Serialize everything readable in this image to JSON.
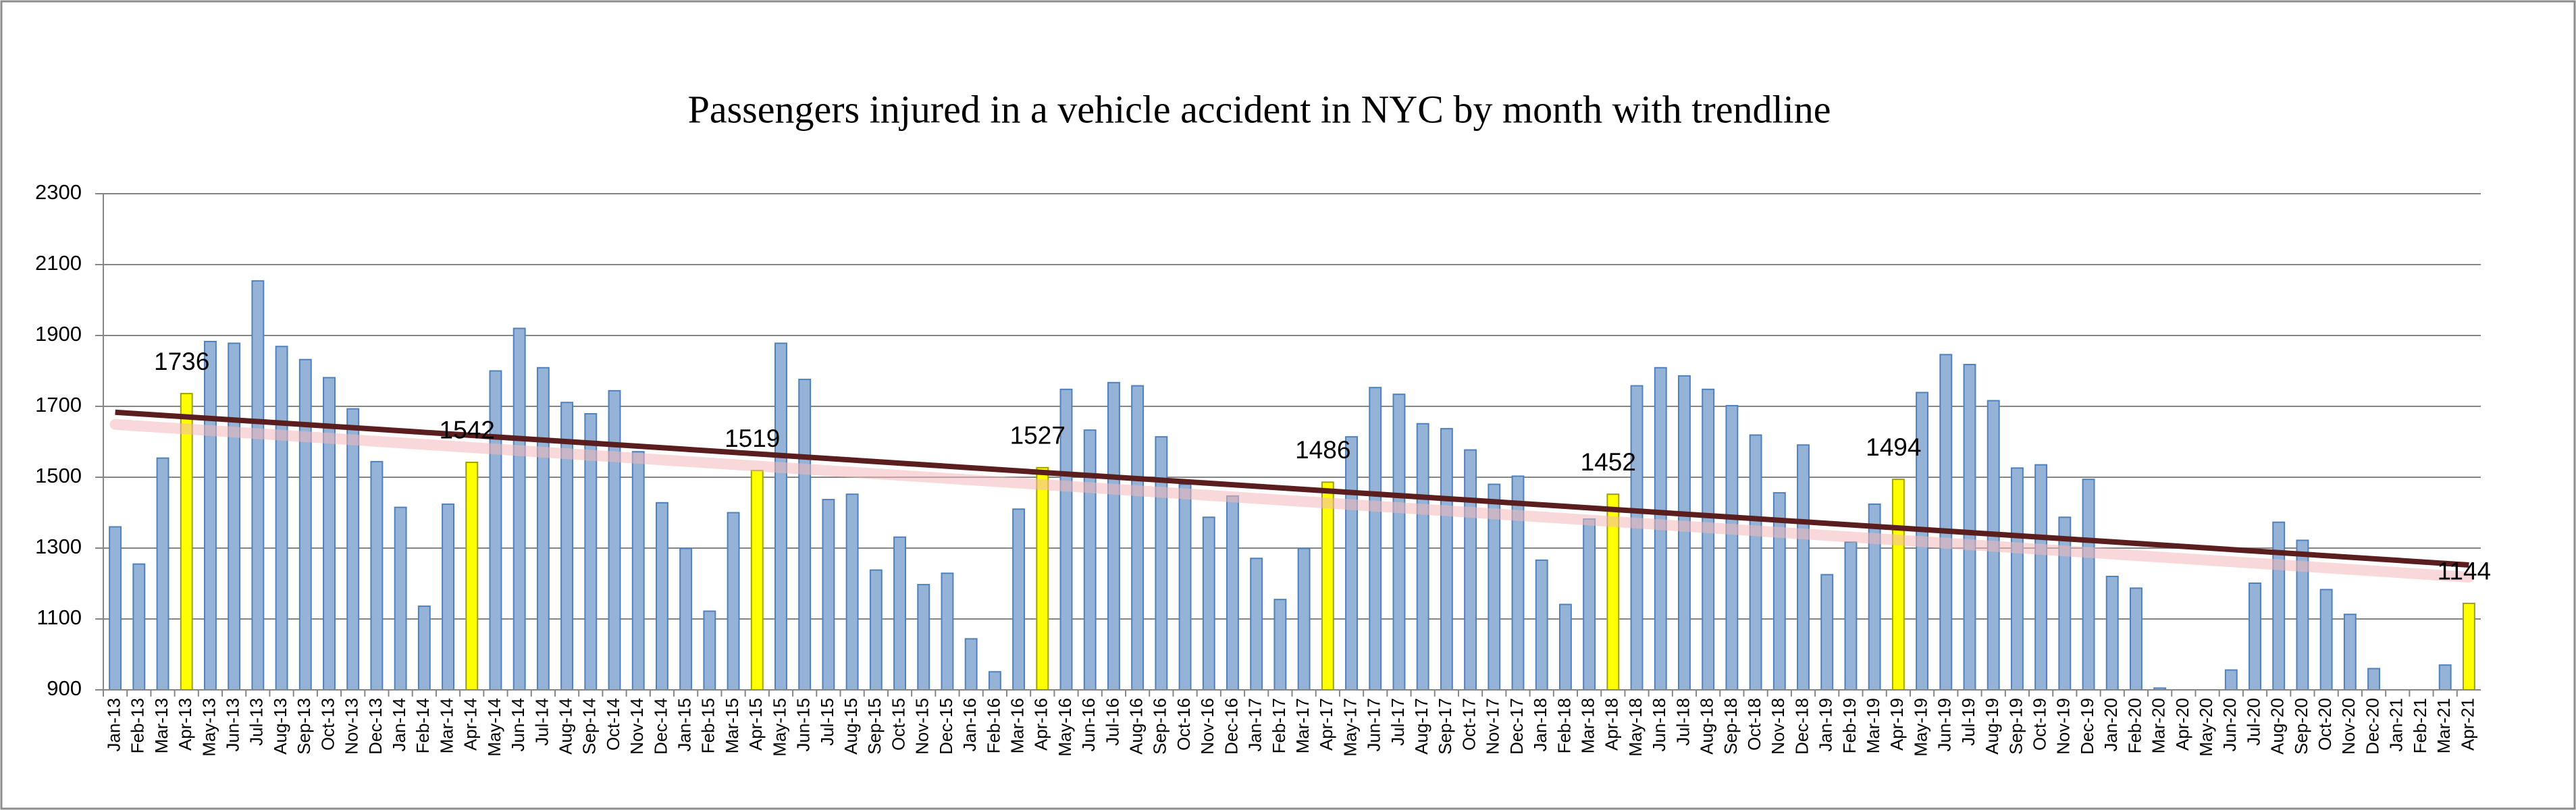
{
  "chart_data": {
    "type": "bar",
    "title": "Passengers injured in a vehicle accident in NYC by month with trendline",
    "categories": [
      "Jan-13",
      "Feb-13",
      "Mar-13",
      "Apr-13",
      "May-13",
      "Jun-13",
      "Jul-13",
      "Aug-13",
      "Sep-13",
      "Oct-13",
      "Nov-13",
      "Dec-13",
      "Jan-14",
      "Feb-14",
      "Mar-14",
      "Apr-14",
      "May-14",
      "Jun-14",
      "Jul-14",
      "Aug-14",
      "Sep-14",
      "Oct-14",
      "Nov-14",
      "Dec-14",
      "Jan-15",
      "Feb-15",
      "Mar-15",
      "Apr-15",
      "May-15",
      "Jun-15",
      "Jul-15",
      "Aug-15",
      "Sep-15",
      "Oct-15",
      "Nov-15",
      "Dec-15",
      "Jan-16",
      "Feb-16",
      "Mar-16",
      "Apr-16",
      "May-16",
      "Jun-16",
      "Jul-16",
      "Aug-16",
      "Sep-16",
      "Oct-16",
      "Nov-16",
      "Dec-16",
      "Jan-17",
      "Feb-17",
      "Mar-17",
      "Apr-17",
      "May-17",
      "Jun-17",
      "Jul-17",
      "Aug-17",
      "Sep-17",
      "Oct-17",
      "Nov-17",
      "Dec-17",
      "Jan-18",
      "Feb-18",
      "Mar-18",
      "Apr-18",
      "May-18",
      "Jun-18",
      "Jul-18",
      "Aug-18",
      "Sep-18",
      "Oct-18",
      "Nov-18",
      "Dec-18",
      "Jan-19",
      "Feb-19",
      "Mar-19",
      "Apr-19",
      "May-19",
      "Jun-19",
      "Jul-19",
      "Aug-19",
      "Sep-19",
      "Oct-19",
      "Nov-19",
      "Dec-19",
      "Jan-20",
      "Feb-20",
      "Mar-20",
      "Apr-20",
      "May-20",
      "Jun-20",
      "Jul-20",
      "Aug-20",
      "Sep-20",
      "Oct-20",
      "Nov-20",
      "Dec-20",
      "Jan-21",
      "Feb-21",
      "Mar-21",
      "Apr-21"
    ],
    "values": [
      1360,
      1255,
      1554,
      1736,
      1883,
      1878,
      2054,
      1869,
      1832,
      1781,
      1693,
      1544,
      1415,
      1136,
      1424,
      1542,
      1800,
      1920,
      1809,
      1711,
      1679,
      1744,
      1572,
      1428,
      1299,
      1122,
      1400,
      1519,
      1878,
      1776,
      1437,
      1452,
      1238,
      1331,
      1197,
      1229,
      1044,
      951,
      1410,
      1527,
      1748,
      1633,
      1767,
      1758,
      1614,
      1480,
      1387,
      1447,
      1271,
      1155,
      1299,
      1486,
      1614,
      1753,
      1734,
      1651,
      1637,
      1577,
      1480,
      1503,
      1266,
      1141,
      1382,
      1452,
      1758,
      1809,
      1786,
      1748,
      1702,
      1619,
      1456,
      1591,
      1225,
      1317,
      1424,
      1494,
      1739,
      1846,
      1818,
      1716,
      1526,
      1535,
      1387,
      1494,
      1220,
      1187,
      905,
      900,
      900,
      956,
      1201,
      1373,
      1322,
      1183,
      1113,
      960,
      900,
      900,
      970,
      1144
    ],
    "value_labels": [
      null,
      null,
      null,
      "1736",
      null,
      null,
      null,
      null,
      null,
      null,
      null,
      null,
      null,
      null,
      null,
      "1542",
      null,
      null,
      null,
      null,
      null,
      null,
      null,
      null,
      null,
      null,
      null,
      "1519",
      null,
      null,
      null,
      null,
      null,
      null,
      null,
      null,
      null,
      null,
      null,
      "1527",
      null,
      null,
      null,
      null,
      null,
      null,
      null,
      null,
      null,
      null,
      null,
      "1486",
      null,
      null,
      null,
      null,
      null,
      null,
      null,
      null,
      null,
      null,
      null,
      "1452",
      null,
      null,
      null,
      null,
      null,
      null,
      null,
      null,
      null,
      null,
      null,
      "1494",
      null,
      null,
      null,
      null,
      null,
      null,
      null,
      null,
      null,
      null,
      null,
      null,
      null,
      null,
      null,
      null,
      null,
      null,
      null,
      null,
      null,
      null,
      null,
      "1144"
    ],
    "colors": [
      "#95b3d7",
      "#95b3d7",
      "#95b3d7",
      "#ffff00",
      "#95b3d7",
      "#95b3d7",
      "#95b3d7",
      "#95b3d7",
      "#95b3d7",
      "#95b3d7",
      "#95b3d7",
      "#95b3d7",
      "#95b3d7",
      "#95b3d7",
      "#95b3d7",
      "#ffff00",
      "#95b3d7",
      "#95b3d7",
      "#95b3d7",
      "#95b3d7",
      "#95b3d7",
      "#95b3d7",
      "#95b3d7",
      "#95b3d7",
      "#95b3d7",
      "#95b3d7",
      "#95b3d7",
      "#ffff00",
      "#95b3d7",
      "#95b3d7",
      "#95b3d7",
      "#95b3d7",
      "#95b3d7",
      "#95b3d7",
      "#95b3d7",
      "#95b3d7",
      "#95b3d7",
      "#95b3d7",
      "#95b3d7",
      "#ffff00",
      "#95b3d7",
      "#95b3d7",
      "#95b3d7",
      "#95b3d7",
      "#95b3d7",
      "#95b3d7",
      "#95b3d7",
      "#95b3d7",
      "#95b3d7",
      "#95b3d7",
      "#95b3d7",
      "#ffff00",
      "#95b3d7",
      "#95b3d7",
      "#95b3d7",
      "#95b3d7",
      "#95b3d7",
      "#95b3d7",
      "#95b3d7",
      "#95b3d7",
      "#95b3d7",
      "#95b3d7",
      "#95b3d7",
      "#ffff00",
      "#95b3d7",
      "#95b3d7",
      "#95b3d7",
      "#95b3d7",
      "#95b3d7",
      "#95b3d7",
      "#95b3d7",
      "#95b3d7",
      "#95b3d7",
      "#95b3d7",
      "#95b3d7",
      "#ffff00",
      "#95b3d7",
      "#95b3d7",
      "#95b3d7",
      "#95b3d7",
      "#95b3d7",
      "#95b3d7",
      "#95b3d7",
      "#95b3d7",
      "#95b3d7",
      "#95b3d7",
      "#95b3d7",
      "#95b3d7",
      "#95b3d7",
      "#95b3d7",
      "#95b3d7",
      "#95b3d7",
      "#95b3d7",
      "#95b3d7",
      "#95b3d7",
      "#95b3d7",
      "#95b3d7",
      "#95b3d7",
      "#95b3d7",
      "#ffff00"
    ],
    "trendline": true,
    "trendline_color": "#5a1e1e",
    "ylim": [
      900,
      2300
    ],
    "yticks": [
      900,
      1100,
      1300,
      1500,
      1700,
      1900,
      2100,
      2300
    ],
    "grid": true
  }
}
